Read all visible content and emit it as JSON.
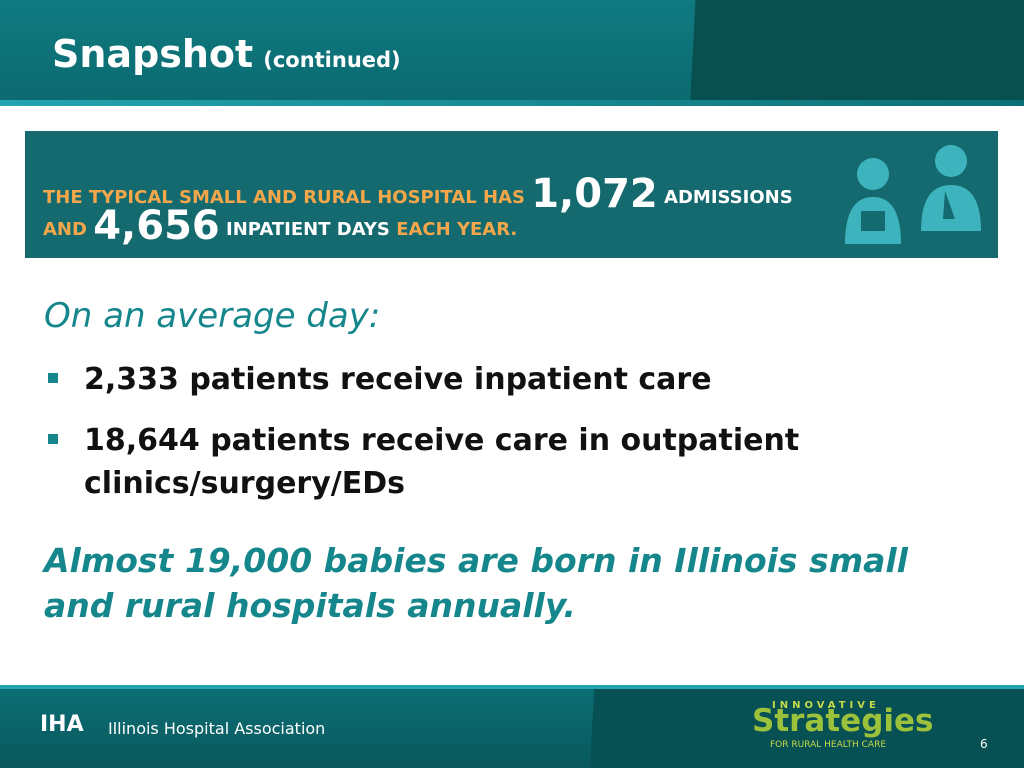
{
  "header": {
    "title": "Snapshot",
    "subtitle": "(continued)"
  },
  "banner": {
    "line1_prefix": "THE TYPICAL SMALL AND RURAL HOSPITAL HAS",
    "admissions": "1,072",
    "admissions_label": "ADMISSIONS",
    "line2_prefix": "AND",
    "inpatient_days": "4,656",
    "inpatient_days_label": "INPATIENT DAYS",
    "line2_suffix": "EACH YEAR."
  },
  "body": {
    "heading": "On an average day:",
    "bullets": [
      "2,333 patients receive inpatient care",
      "18,644 patients receive care in outpatient clinics/surgery/EDs"
    ],
    "closing": "Almost 19,000 babies are born in Illinois small and rural hospitals annually."
  },
  "footer": {
    "logo_mark": "IHA",
    "organization": "Illinois Hospital Association",
    "partner_top": "INNOVATIVE",
    "partner_name": "Strategies",
    "partner_bottom": "FOR RURAL HEALTH CARE",
    "page_number": "6"
  }
}
